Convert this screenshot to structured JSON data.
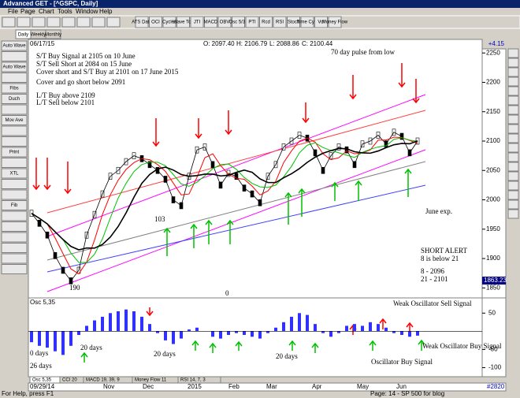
{
  "window": {
    "title": "Advanced GET - [^GSPC, Daily]"
  },
  "menu": [
    "File",
    "Page",
    "Chart",
    "Tools",
    "Window",
    "Help"
  ],
  "toolbar": [
    "ATS Data",
    "OCI",
    "Cycles",
    "Wave Tog",
    "JTI",
    "MACD",
    "OBV",
    "Osc 5/35",
    "PTI",
    "Rcd",
    "RSI",
    "Stoch",
    "Time Cycl",
    "Vol",
    "Money Flow"
  ],
  "tabs": [
    "Daily",
    "Weekly",
    "Monthly"
  ],
  "left_tools": [
    "Auto Wave",
    "Auto Wave",
    "Fibs",
    "Duch",
    "Mov Ave",
    "Print",
    "XTL",
    "Fib"
  ],
  "header": {
    "date": "06/17/15",
    "open": "O: 2097.40",
    "high": "H: 2106.79",
    "low": "L: 2088.86",
    "close": "C: 2100.44",
    "change": "+4.15"
  },
  "price_chart": {
    "ylim": [
      1837,
      2257
    ],
    "yticks": [
      2250,
      2200,
      2150,
      2100,
      2050,
      2000,
      1950,
      1900,
      1850
    ],
    "price_box": "1863.23",
    "closes": [
      1977,
      1960,
      1940,
      1905,
      1880,
      1862,
      1880,
      1940,
      1975,
      2010,
      2040,
      2050,
      2065,
      2075,
      2070,
      2060,
      2050,
      2035,
      2000,
      1990,
      2040,
      2085,
      2090,
      2060,
      2025,
      2045,
      2040,
      2020,
      2010,
      1995,
      2040,
      2060,
      2090,
      2100,
      2110,
      2105,
      2080,
      2050,
      2075,
      2090,
      2085,
      2060,
      2095,
      2100,
      2110,
      2095,
      2115,
      2108,
      2080,
      2100
    ],
    "notes": [
      "S/T Buy Signal at 2105 on 10 June",
      "S/T Sell Short at 2084 on 15 June",
      "Cover short and S/T Buy at 2101 on 17 June 2015",
      "Cover and go short below 2091",
      "L/T Buy above 2109",
      "L/T Sell below 2101"
    ],
    "pulse": "70 day pulse from low",
    "june_exp": "June exp.",
    "alert": [
      "SHORT ALERT",
      "8 is below 21",
      "8   - 2096",
      "21 - 2101"
    ],
    "counts": [
      "103",
      "190",
      "0"
    ]
  },
  "oscillator": {
    "label": "Osc 5,35",
    "ylim": [
      -125,
      87.5
    ],
    "yticks": [
      50,
      -50,
      -100
    ],
    "values": [
      -30,
      -40,
      -45,
      -55,
      -65,
      -40,
      -10,
      15,
      30,
      40,
      50,
      55,
      60,
      55,
      40,
      20,
      -5,
      -25,
      -35,
      -20,
      5,
      10,
      0,
      -15,
      -20,
      -10,
      -5,
      -10,
      -15,
      -20,
      -5,
      10,
      25,
      40,
      50,
      45,
      20,
      -5,
      -15,
      -5,
      15,
      20,
      15,
      25,
      20,
      10,
      -5,
      -10,
      -15,
      -12
    ],
    "notes": [
      "Weak Oscillator Sell Signal",
      "Weak Oscillator Buy Signal",
      "Oscillator Buy Signal",
      "20 days",
      "20 days",
      "20 days",
      "0 days",
      "26 days"
    ]
  },
  "indicator_tabs": [
    "Osc 5,35",
    "CCI 20",
    "MACD 19, 39, 9",
    "Money Flow 11",
    "RSI 14, 7, 3"
  ],
  "dates": [
    "09/29/14",
    "Nov",
    "Dec",
    "2015",
    "Feb",
    "Mar",
    "Apr",
    "May",
    "Jun"
  ],
  "record": "#2820",
  "status": [
    "For Help, press F1",
    "Page: 14 - SP 500 for blog"
  ]
}
